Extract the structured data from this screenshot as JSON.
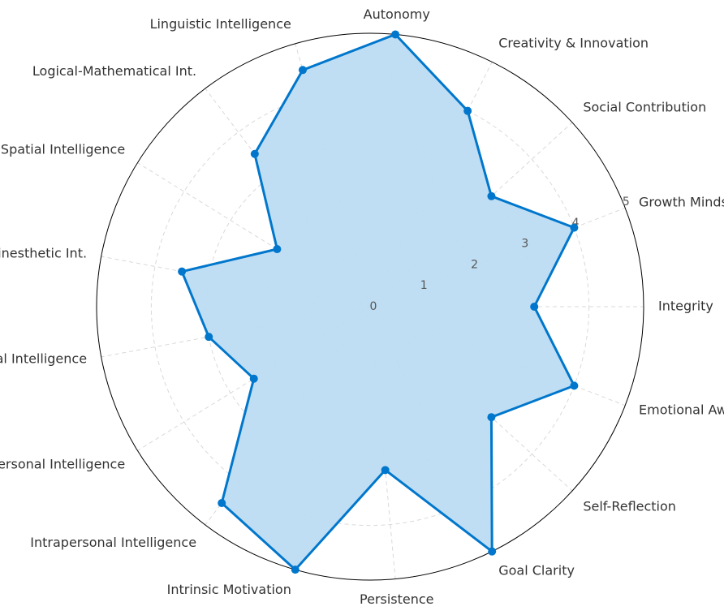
{
  "chart_data": {
    "type": "radar",
    "categories": [
      "Integrity",
      "Growth Mindset",
      "Social Contribution",
      "Creativity & Innovation",
      "Autonomy",
      "Linguistic Intelligence",
      "Logical-Mathematical Int.",
      "Spatial Intelligence",
      "Bodily-Kinesthetic Int.",
      "Musical Intelligence",
      "Interpersonal Intelligence",
      "Intrapersonal Intelligence",
      "Intrinsic Motivation",
      "Persistence",
      "Goal Clarity",
      "Self-Reflection",
      "Emotional Awareness"
    ],
    "values": [
      3,
      4,
      3,
      4,
      5,
      4.5,
      3.5,
      2,
      3.5,
      3,
      2.5,
      4.5,
      5,
      3,
      5,
      3,
      4
    ],
    "rlim": [
      0,
      5
    ],
    "rticks": [
      "0",
      "1",
      "2",
      "3",
      "4",
      "5"
    ],
    "grid": true,
    "colors": {
      "line": "#0077cc",
      "fill": "#bddcf2",
      "grid": "#d9d9d9",
      "outline": "#000000"
    }
  }
}
